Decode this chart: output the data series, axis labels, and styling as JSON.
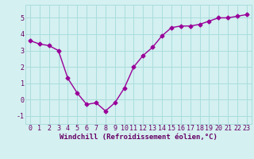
{
  "x": [
    0,
    1,
    2,
    3,
    4,
    5,
    6,
    7,
    8,
    9,
    10,
    11,
    12,
    13,
    14,
    15,
    16,
    17,
    18,
    19,
    20,
    21,
    22,
    23
  ],
  "y": [
    3.6,
    3.4,
    3.3,
    3.0,
    1.3,
    0.4,
    -0.3,
    -0.2,
    -0.7,
    -0.2,
    0.7,
    2.0,
    2.7,
    3.2,
    3.9,
    4.4,
    4.5,
    4.5,
    4.6,
    4.8,
    5.0,
    5.0,
    5.1,
    5.2
  ],
  "line_color": "#990099",
  "marker": "D",
  "marker_size": 2.5,
  "bg_color": "#d4f0f0",
  "grid_color": "#aadddd",
  "tick_color": "#660066",
  "xlabel": "Windchill (Refroidissement éolien,°C)",
  "xlabel_color": "#660066",
  "yticks": [
    -1,
    0,
    1,
    2,
    3,
    4,
    5
  ],
  "ylim": [
    -1.5,
    5.8
  ],
  "xlim": [
    -0.5,
    23.5
  ],
  "xticks": [
    0,
    1,
    2,
    3,
    4,
    5,
    6,
    7,
    8,
    9,
    10,
    11,
    12,
    13,
    14,
    15,
    16,
    17,
    18,
    19,
    20,
    21,
    22,
    23
  ],
  "font_family": "monospace",
  "tick_fontsize": 6.0,
  "xlabel_fontsize": 6.5,
  "linewidth": 1.0
}
